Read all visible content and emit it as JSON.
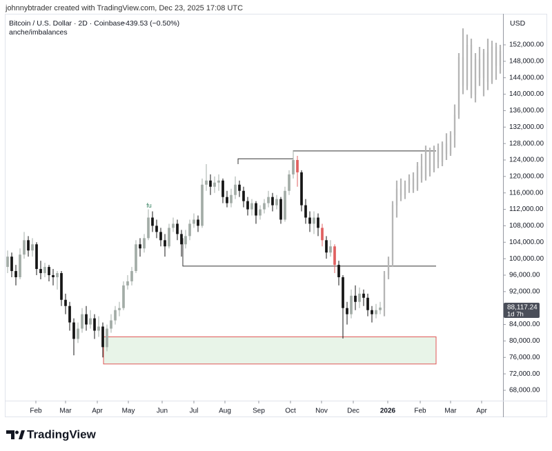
{
  "header": {
    "credit": "johnnybtrader created with TradingView.com, Dec 23, 2025 17:08 UTC",
    "symbol": "Bitcoin / U.S. Dollar · 2D · Coinbase",
    "change": "−439.53 (−0.50%)",
    "indicator": "anche/imbalances",
    "currency": "USD"
  },
  "footer": {
    "logo": "TradingView"
  },
  "chart_data": {
    "type": "candlestick",
    "xlim": [
      -0.5,
      119.5
    ],
    "ylim": [
      65650,
      159550
    ],
    "grid": false,
    "up_color": "#a3aca7",
    "down_color": "#161616",
    "projection_color": "#b5b5b5",
    "highlight_color": "#e06060",
    "highlighted": [
      70,
      76,
      79
    ],
    "yticks": [
      {
        "value": 68000,
        "label": "68,000.00"
      },
      {
        "value": 72000,
        "label": "72,000.00"
      },
      {
        "value": 76000,
        "label": "76,000.00"
      },
      {
        "value": 80000,
        "label": "80,000.00"
      },
      {
        "value": 84000,
        "label": "84,000.00"
      },
      {
        "value": 92000,
        "label": "92,000.00"
      },
      {
        "value": 96000,
        "label": "96,000.00"
      },
      {
        "value": 100000,
        "label": "100,000.00"
      },
      {
        "value": 104000,
        "label": "104,000.00"
      },
      {
        "value": 108000,
        "label": "108,000.00"
      },
      {
        "value": 112000,
        "label": "112,000.00"
      },
      {
        "value": 116000,
        "label": "116,000.00"
      },
      {
        "value": 120000,
        "label": "120,000.00"
      },
      {
        "value": 124000,
        "label": "124,000.00"
      },
      {
        "value": 128000,
        "label": "128,000.00"
      },
      {
        "value": 132000,
        "label": "132,000.00"
      },
      {
        "value": 136000,
        "label": "136,000.00"
      },
      {
        "value": 140000,
        "label": "140,000.00"
      },
      {
        "value": 144000,
        "label": "144,000.00"
      },
      {
        "value": 148000,
        "label": "148,000.00"
      },
      {
        "value": 152000,
        "label": "152,000.00"
      }
    ],
    "xticks": [
      {
        "value": 6.83,
        "label": "Feb"
      },
      {
        "value": 14,
        "label": "Mar"
      },
      {
        "value": 21.67,
        "label": "Apr"
      },
      {
        "value": 29.17,
        "label": "May"
      },
      {
        "value": 37.33,
        "label": "Jun"
      },
      {
        "value": 45,
        "label": "Jul"
      },
      {
        "value": 52.5,
        "label": "Aug"
      },
      {
        "value": 60.67,
        "label": "Sep"
      },
      {
        "value": 68.33,
        "label": "Oct"
      },
      {
        "value": 75.83,
        "label": "Nov"
      },
      {
        "value": 83.5,
        "label": "Dec"
      },
      {
        "value": 91.83,
        "label": "2026"
      },
      {
        "value": 99.67,
        "label": "Feb"
      },
      {
        "value": 107,
        "label": "Mar"
      },
      {
        "value": 114.5,
        "label": "Apr"
      }
    ],
    "last_price": {
      "value": 88117.24,
      "label": "88,117.24",
      "countdown": "1d 7h"
    },
    "zone": {
      "x": [
        23.17,
        103.5
      ],
      "y": [
        74400,
        81000
      ],
      "color": "#e8f4e8",
      "border": "#e05555"
    },
    "lines": [
      {
        "x": [
          42.33,
          42.33,
          103.5
        ],
        "y": [
          105000,
          98200,
          98200
        ]
      },
      {
        "x": [
          55.67,
          55.67,
          69
        ],
        "y": [
          123000,
          124300,
          124300
        ]
      },
      {
        "x": [
          69,
          69,
          103.5
        ],
        "y": [
          124300,
          126200,
          126200
        ]
      }
    ],
    "annotations": [
      {
        "text": "fu",
        "x": 34.17,
        "y": 112800,
        "color": "#2e7d5b"
      }
    ],
    "candles": [
      [
        98000,
        102000,
        96500,
        100500
      ],
      [
        100500,
        101500,
        95500,
        97000
      ],
      [
        97000,
        98500,
        93500,
        95500
      ],
      [
        95500,
        102500,
        95000,
        101000
      ],
      [
        101000,
        106500,
        100000,
        104500
      ],
      [
        104500,
        105500,
        100500,
        102000
      ],
      [
        102000,
        105000,
        100500,
        103500
      ],
      [
        103500,
        104000,
        96000,
        97500
      ],
      [
        97500,
        99500,
        95000,
        96500
      ],
      [
        96500,
        99000,
        95500,
        98000
      ],
      [
        98000,
        98500,
        94500,
        96000
      ],
      [
        96000,
        97500,
        93500,
        95500
      ],
      [
        95500,
        97000,
        92500,
        96500
      ],
      [
        96500,
        97000,
        88500,
        90000
      ],
      [
        90000,
        91500,
        86500,
        88500
      ],
      [
        88500,
        89500,
        82500,
        84500
      ],
      [
        84500,
        85500,
        76500,
        80500
      ],
      [
        80500,
        84500,
        79500,
        83000
      ],
      [
        83000,
        88000,
        82000,
        86500
      ],
      [
        86500,
        88500,
        82500,
        84000
      ],
      [
        84000,
        87500,
        83000,
        85500
      ],
      [
        85500,
        86500,
        80500,
        82500
      ],
      [
        82500,
        86000,
        81000,
        83500
      ],
      [
        83500,
        84500,
        76000,
        78500
      ],
      [
        78500,
        84000,
        77500,
        83000
      ],
      [
        83000,
        86500,
        82000,
        85000
      ],
      [
        85000,
        88500,
        84000,
        87500
      ],
      [
        87500,
        89500,
        86000,
        88000
      ],
      [
        88000,
        94500,
        87500,
        93500
      ],
      [
        93500,
        96000,
        92500,
        94500
      ],
      [
        94500,
        98000,
        93500,
        97000
      ],
      [
        97000,
        104500,
        96500,
        103500
      ],
      [
        103500,
        105000,
        100500,
        102500
      ],
      [
        102500,
        106000,
        101500,
        105000
      ],
      [
        105000,
        112000,
        104500,
        110000
      ],
      [
        110000,
        111500,
        106500,
        108000
      ],
      [
        108000,
        109500,
        105000,
        106500
      ],
      [
        106500,
        107500,
        103000,
        104500
      ],
      [
        104500,
        106000,
        100500,
        103000
      ],
      [
        103000,
        108500,
        102500,
        107500
      ],
      [
        107500,
        110000,
        106500,
        108500
      ],
      [
        108500,
        109500,
        104500,
        106000
      ],
      [
        106000,
        107000,
        100500,
        103500
      ],
      [
        103500,
        107000,
        102500,
        105500
      ],
      [
        105500,
        109500,
        104500,
        108500
      ],
      [
        108500,
        111000,
        107500,
        109500
      ],
      [
        109500,
        110500,
        106500,
        108000
      ],
      [
        108000,
        119500,
        107500,
        118000
      ],
      [
        118000,
        123000,
        116500,
        119000
      ],
      [
        119000,
        120500,
        115500,
        117500
      ],
      [
        117500,
        120000,
        116000,
        118500
      ],
      [
        118500,
        120500,
        116500,
        119000
      ],
      [
        119000,
        119500,
        113500,
        115000
      ],
      [
        115000,
        116500,
        112500,
        113500
      ],
      [
        113500,
        117000,
        112500,
        115500
      ],
      [
        115500,
        120000,
        114500,
        118000
      ],
      [
        118000,
        119000,
        115000,
        116500
      ],
      [
        116500,
        117500,
        112500,
        114000
      ],
      [
        114000,
        115000,
        110500,
        112000
      ],
      [
        112000,
        114500,
        110500,
        113500
      ],
      [
        113500,
        114000,
        108500,
        110500
      ],
      [
        110500,
        113000,
        109500,
        112000
      ],
      [
        112000,
        114500,
        111000,
        113500
      ],
      [
        113500,
        116500,
        112500,
        115000
      ],
      [
        115000,
        116000,
        111500,
        113000
      ],
      [
        113000,
        115500,
        112000,
        114500
      ],
      [
        114500,
        115000,
        108500,
        109500
      ],
      [
        109500,
        117500,
        109000,
        116500
      ],
      [
        116500,
        121500,
        115500,
        120500
      ],
      [
        120500,
        126200,
        119500,
        124000
      ],
      [
        124000,
        125000,
        117500,
        121000
      ],
      [
        121000,
        121500,
        111500,
        113000
      ],
      [
        113000,
        114500,
        108500,
        110000
      ],
      [
        110000,
        111500,
        106500,
        108500
      ],
      [
        108500,
        111500,
        106000,
        110000
      ],
      [
        110000,
        111000,
        105500,
        107500
      ],
      [
        107500,
        108500,
        103000,
        104500
      ],
      [
        104500,
        105500,
        100000,
        101500
      ],
      [
        101500,
        104500,
        100500,
        103000
      ],
      [
        103000,
        103500,
        96500,
        98500
      ],
      [
        98500,
        99500,
        93500,
        95500
      ],
      [
        95500,
        96000,
        80600,
        88000
      ],
      [
        88000,
        89500,
        84000,
        86500
      ],
      [
        86500,
        92500,
        85500,
        91000
      ],
      [
        91000,
        93500,
        87500,
        89500
      ],
      [
        89500,
        93000,
        88000,
        91500
      ],
      [
        91500,
        92500,
        88500,
        90500
      ],
      [
        90500,
        91500,
        86000,
        87500
      ],
      [
        87500,
        88500,
        84500,
        86500
      ],
      [
        86500,
        89000,
        85500,
        87500
      ],
      [
        87500,
        89500,
        86500,
        88117.24
      ],
      null,
      null,
      null,
      null,
      null,
      null,
      null,
      null,
      null,
      null,
      null,
      null,
      null,
      null,
      null,
      null,
      null,
      null,
      null,
      null,
      null,
      null,
      null,
      null,
      null,
      null,
      null,
      null,
      null
    ],
    "projected": [
      null,
      null,
      null,
      null,
      null,
      null,
      null,
      null,
      null,
      null,
      null,
      null,
      null,
      null,
      null,
      null,
      null,
      null,
      null,
      null,
      null,
      null,
      null,
      null,
      null,
      null,
      null,
      null,
      null,
      null,
      null,
      null,
      null,
      null,
      null,
      null,
      null,
      null,
      null,
      null,
      null,
      null,
      null,
      null,
      null,
      null,
      null,
      null,
      null,
      null,
      null,
      null,
      null,
      null,
      null,
      null,
      null,
      null,
      null,
      null,
      null,
      null,
      null,
      null,
      null,
      null,
      null,
      null,
      null,
      null,
      null,
      null,
      null,
      null,
      null,
      null,
      null,
      null,
      null,
      null,
      null,
      null,
      null,
      null,
      null,
      null,
      null,
      null,
      null,
      null,
      null,
      [
        88000,
        97000,
        86000,
        96000
      ],
      [
        96000,
        100500,
        95000,
        99500
      ],
      [
        99500,
        114000,
        98000,
        113000
      ],
      [
        113000,
        119000,
        110000,
        117000
      ],
      [
        117000,
        119500,
        114000,
        115500
      ],
      [
        115500,
        119000,
        114500,
        118000
      ],
      [
        118000,
        120500,
        116000,
        119500
      ],
      [
        119500,
        121000,
        116000,
        117000
      ],
      [
        117000,
        123500,
        116500,
        122500
      ],
      [
        122500,
        125500,
        118500,
        119500
      ],
      [
        119500,
        127500,
        119000,
        126500
      ],
      [
        126500,
        127000,
        120000,
        121500
      ],
      [
        121500,
        127500,
        121000,
        127000
      ],
      [
        127000,
        128000,
        122000,
        123500
      ],
      [
        123500,
        128500,
        122500,
        128000
      ],
      [
        128000,
        130500,
        124000,
        125500
      ],
      [
        125500,
        131000,
        125000,
        130000
      ],
      [
        130000,
        137500,
        127000,
        135000
      ],
      [
        135000,
        150000,
        134000,
        149000
      ],
      [
        149000,
        156000,
        140000,
        142000
      ],
      [
        142000,
        154500,
        141000,
        152000
      ],
      [
        152000,
        153500,
        139000,
        140000
      ],
      [
        140000,
        150000,
        138000,
        148500
      ],
      [
        148500,
        151500,
        142000,
        144000
      ],
      [
        144000,
        151000,
        139500,
        150000
      ],
      [
        150000,
        153500,
        141000,
        143000
      ],
      [
        143000,
        153000,
        142500,
        151500
      ],
      [
        151500,
        152500,
        143500,
        147000
      ],
      [
        147000,
        152000,
        145000,
        150500
      ]
    ]
  }
}
